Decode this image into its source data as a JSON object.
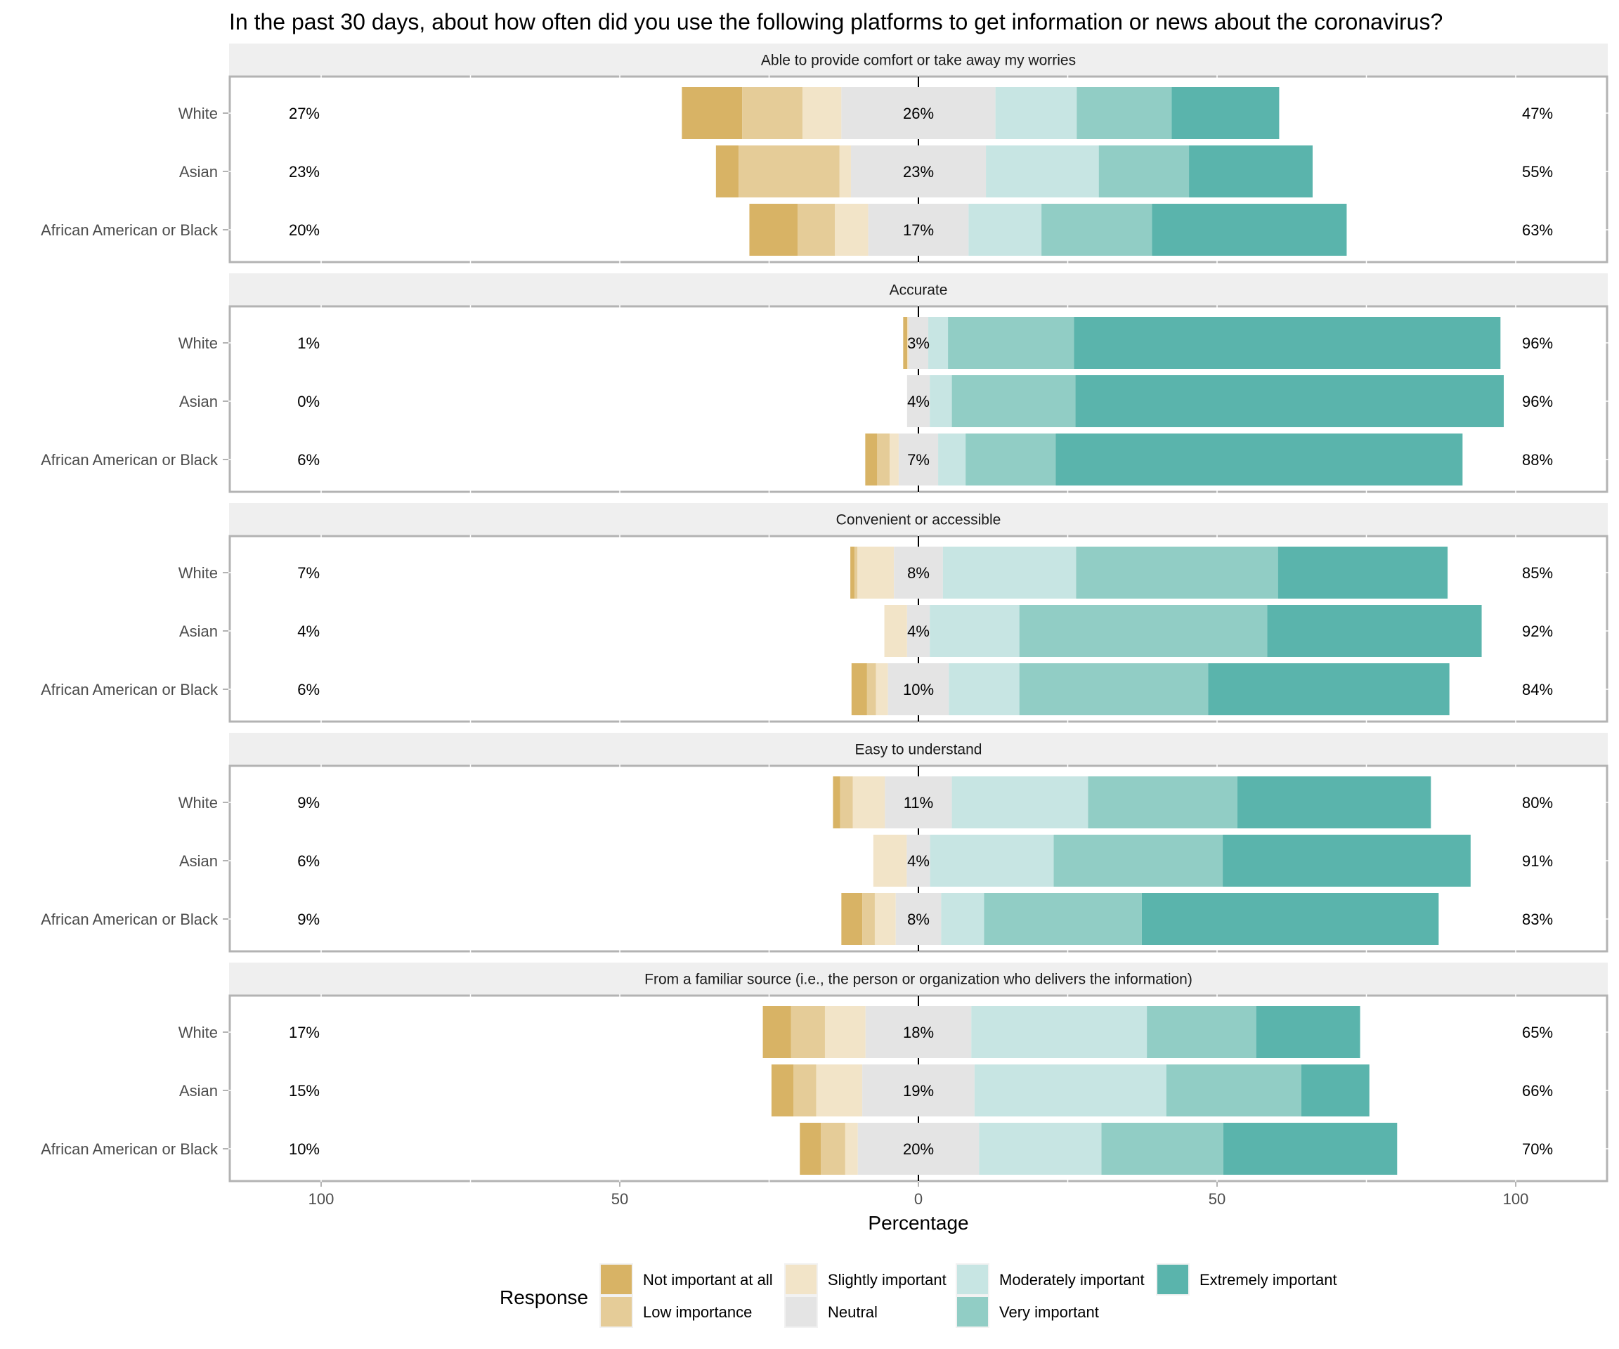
{
  "chart_data": {
    "type": "bar",
    "subtype": "diverging-stacked-horizontal",
    "title": "In the past 30 days, about how often did you use the following platforms to get information or news about the coronavirus?",
    "xlabel": "Percentage",
    "ylabel": "",
    "xlim": [
      -115,
      115
    ],
    "x_ticks": [
      -100,
      -50,
      0,
      50,
      100
    ],
    "x_tick_labels": [
      "100",
      "50",
      "0",
      "50",
      "100"
    ],
    "grid": false,
    "legend_title": "Response",
    "legend_position": "bottom",
    "levels": [
      "Not important at all",
      "Low importance",
      "Slightly important",
      "Neutral",
      "Moderately important",
      "Very important",
      "Extremely important"
    ],
    "legend_order": [
      "Not important at all",
      "Low importance",
      "Slightly important",
      "Neutral",
      "Moderately important",
      "Very important",
      "Extremely important"
    ],
    "colors": {
      "Not important at all": "#d8b365",
      "Low importance": "#e5cc98",
      "Slightly important": "#f2e4c8",
      "Neutral": "#e4e4e4",
      "Moderately important": "#c7e5e3",
      "Very important": "#91cdc5",
      "Extremely important": "#5ab4ac"
    },
    "categories": [
      "White",
      "Asian",
      "African American or Black"
    ],
    "facets": [
      {
        "label": "Able to provide comfort or take away my worries",
        "rows": [
          {
            "group": "White",
            "values": [
              10.1,
              10.1,
              6.5,
              25.8,
              13.6,
              15.9,
              18.0
            ],
            "left_label": "27%",
            "neutral_label": "26%",
            "right_label": "47%"
          },
          {
            "group": "Asian",
            "values": [
              3.8,
              16.9,
              1.9,
              22.6,
              18.9,
              15.1,
              20.7
            ],
            "left_label": "23%",
            "neutral_label": "23%",
            "right_label": "55%"
          },
          {
            "group": "African American or Black",
            "values": [
              8.1,
              6.2,
              5.6,
              16.8,
              12.2,
              18.5,
              32.6
            ],
            "left_label": "20%",
            "neutral_label": "17%",
            "right_label": "63%"
          }
        ]
      },
      {
        "label": "Accurate",
        "rows": [
          {
            "group": "White",
            "values": [
              0.7,
              0.0,
              0.2,
              3.3,
              3.3,
              21.1,
              71.4
            ],
            "left_label": "1%",
            "neutral_label": "3%",
            "right_label": "96%"
          },
          {
            "group": "Asian",
            "values": [
              0.0,
              0.0,
              0.0,
              3.8,
              3.7,
              20.7,
              71.7
            ],
            "left_label": "0%",
            "neutral_label": "4%",
            "right_label": "96%"
          },
          {
            "group": "African American or Black",
            "values": [
              2.0,
              2.1,
              1.5,
              6.6,
              4.6,
              15.1,
              68.1
            ],
            "left_label": "6%",
            "neutral_label": "7%",
            "right_label": "88%"
          }
        ]
      },
      {
        "label": "Convenient or accessible",
        "rows": [
          {
            "group": "White",
            "values": [
              0.7,
              0.5,
              6.1,
              8.2,
              22.3,
              33.8,
              28.4
            ],
            "left_label": "7%",
            "neutral_label": "8%",
            "right_label": "85%"
          },
          {
            "group": "Asian",
            "values": [
              0.0,
              0.0,
              3.8,
              3.8,
              15.0,
              41.5,
              35.9
            ],
            "left_label": "4%",
            "neutral_label": "4%",
            "right_label": "92%"
          },
          {
            "group": "African American or Black",
            "values": [
              2.6,
              1.5,
              2.0,
              10.2,
              11.8,
              31.6,
              40.4
            ],
            "left_label": "6%",
            "neutral_label": "10%",
            "right_label": "84%"
          }
        ]
      },
      {
        "label": "Easy to understand",
        "rows": [
          {
            "group": "White",
            "values": [
              1.2,
              2.1,
              5.4,
              11.2,
              22.8,
              25.0,
              32.4
            ],
            "left_label": "9%",
            "neutral_label": "11%",
            "right_label": "80%"
          },
          {
            "group": "Asian",
            "values": [
              0.0,
              0.0,
              5.6,
              3.9,
              20.7,
              28.3,
              41.5
            ],
            "left_label": "6%",
            "neutral_label": "4%",
            "right_label": "91%"
          },
          {
            "group": "African American or Black",
            "values": [
              3.5,
              2.1,
              3.5,
              7.6,
              7.2,
              26.4,
              49.7
            ],
            "left_label": "9%",
            "neutral_label": "8%",
            "right_label": "83%"
          }
        ]
      },
      {
        "label": "From a familiar source (i.e., the person or organization who delivers the information)",
        "rows": [
          {
            "group": "White",
            "values": [
              4.7,
              5.7,
              6.8,
              17.7,
              29.4,
              18.3,
              17.4
            ],
            "left_label": "17%",
            "neutral_label": "18%",
            "right_label": "65%"
          },
          {
            "group": "Asian",
            "values": [
              3.7,
              3.8,
              7.7,
              18.8,
              32.1,
              22.6,
              11.4
            ],
            "left_label": "15%",
            "neutral_label": "19%",
            "right_label": "66%"
          },
          {
            "group": "African American or Black",
            "values": [
              3.5,
              4.1,
              2.1,
              20.3,
              20.5,
              20.4,
              29.1
            ],
            "left_label": "10%",
            "neutral_label": "20%",
            "right_label": "70%"
          }
        ]
      }
    ]
  }
}
